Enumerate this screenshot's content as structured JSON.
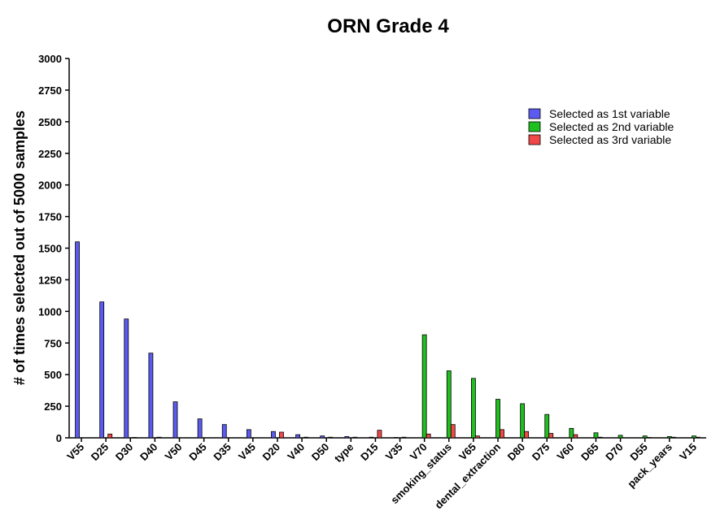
{
  "chart_data": {
    "type": "bar",
    "title": "ORN Grade 4",
    "ylabel": "# of times selected out of 5000 samples",
    "categories": [
      "V55",
      "D25",
      "D30",
      "D40",
      "V50",
      "D45",
      "D35",
      "V45",
      "D20",
      "V40",
      "D50",
      "type",
      "D15",
      "V35",
      "V70",
      "smoking_status",
      "V65",
      "dental_extraction",
      "D80",
      "D75",
      "V60",
      "D65",
      "D70",
      "D55",
      "pack_years",
      "V15"
    ],
    "series": [
      {
        "name": "Selected as 1st variable",
        "color": "#5b5bf0",
        "values": [
          1550,
          1075,
          940,
          670,
          285,
          150,
          105,
          65,
          50,
          25,
          15,
          10,
          5,
          3,
          0,
          0,
          0,
          0,
          0,
          0,
          0,
          0,
          0,
          0,
          0,
          0
        ]
      },
      {
        "name": "Selected as 2nd variable",
        "color": "#1fbf1f",
        "values": [
          0,
          0,
          0,
          0,
          0,
          0,
          0,
          0,
          0,
          0,
          0,
          0,
          0,
          0,
          815,
          530,
          470,
          305,
          270,
          185,
          75,
          40,
          20,
          15,
          10,
          15
        ]
      },
      {
        "name": "Selected as 3rd variable",
        "color": "#f04848",
        "values": [
          0,
          30,
          3,
          5,
          0,
          0,
          0,
          0,
          45,
          5,
          5,
          5,
          60,
          5,
          30,
          105,
          15,
          65,
          50,
          35,
          25,
          5,
          0,
          3,
          5,
          5
        ]
      }
    ],
    "ylim": [
      0,
      3000
    ],
    "yticks": [
      0,
      250,
      500,
      750,
      1000,
      1250,
      1500,
      1750,
      2000,
      2250,
      2500,
      2750,
      3000
    ],
    "grid": false,
    "legend": "upper right"
  }
}
